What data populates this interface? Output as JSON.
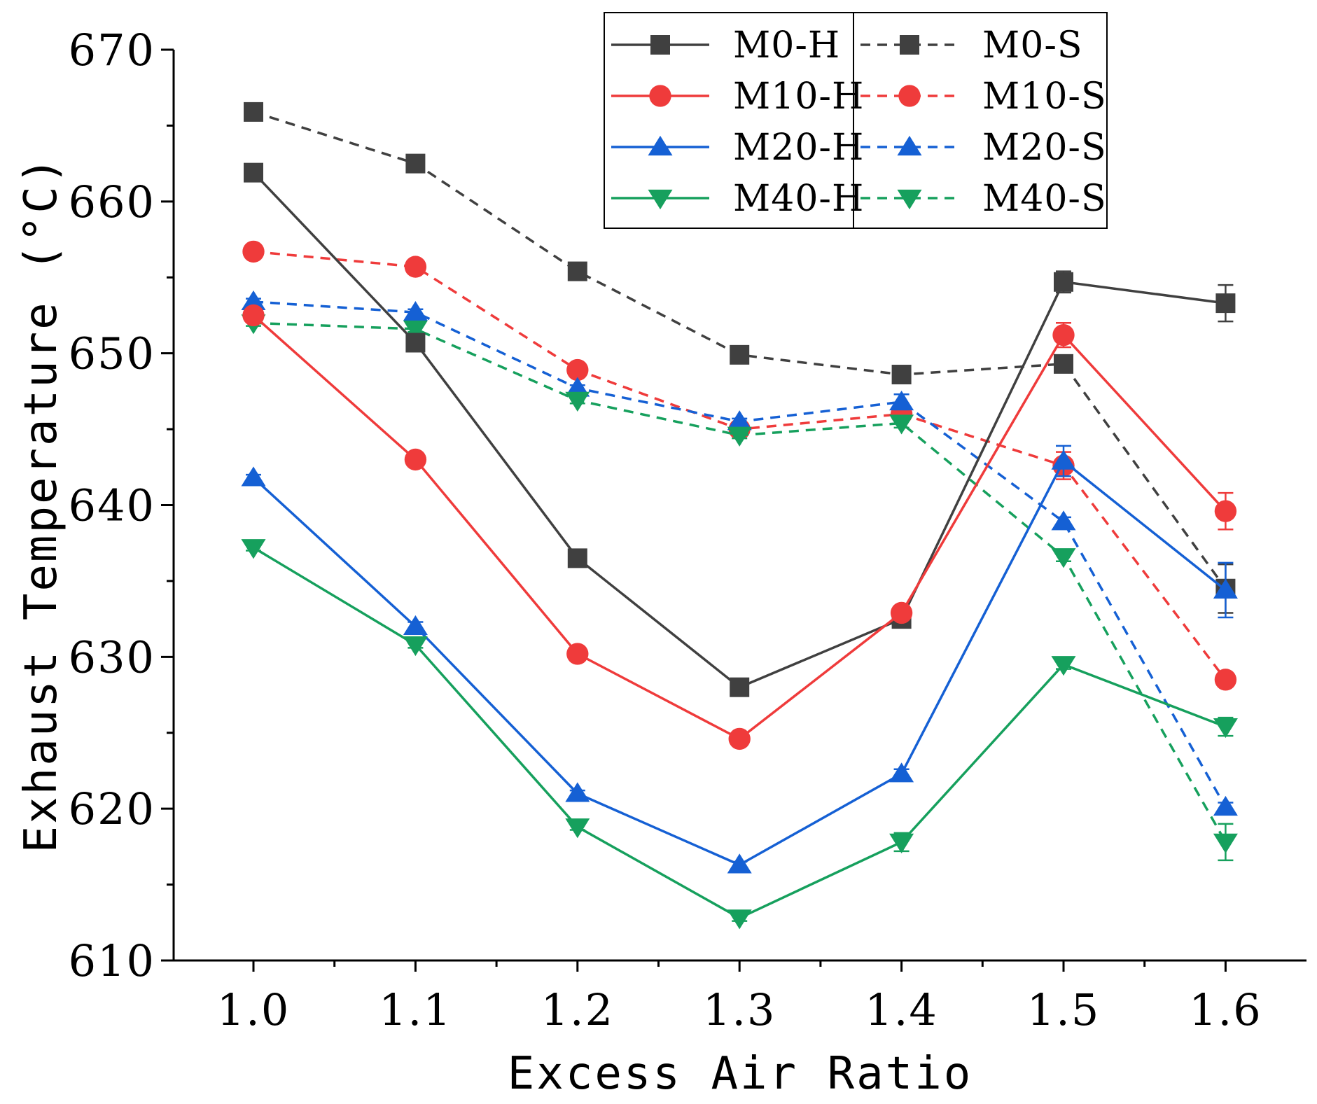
{
  "chart_data": {
    "type": "line",
    "title": "",
    "xlabel": "Excess Air Ratio",
    "ylabel": "Exhaust Temperature (°C)",
    "x": [
      1.0,
      1.1,
      1.2,
      1.3,
      1.4,
      1.5,
      1.6
    ],
    "x_tick_labels": [
      "1.0",
      "1.1",
      "1.2",
      "1.3",
      "1.4",
      "1.5",
      "1.6"
    ],
    "xlim": [
      0.95,
      1.65
    ],
    "ylim": [
      610,
      670
    ],
    "y_ticks": [
      610,
      620,
      630,
      640,
      650,
      660,
      670
    ],
    "y_minor_ticks": [
      615,
      625,
      635,
      645,
      655,
      665
    ],
    "y_tick_labels": [
      "610",
      "620",
      "630",
      "640",
      "650",
      "660",
      "670"
    ],
    "legend_position": "top-right",
    "series": [
      {
        "name": "M0-H",
        "color": "#404040",
        "dash": "solid",
        "marker": "square",
        "values": [
          661.9,
          650.7,
          636.5,
          628.0,
          632.5,
          654.7,
          653.3
        ],
        "errors": [
          0.2,
          0.2,
          0.2,
          0.2,
          0.2,
          0.7,
          1.2
        ]
      },
      {
        "name": "M10-H",
        "color": "#ef3b3b",
        "dash": "solid",
        "marker": "circle",
        "values": [
          652.5,
          643.0,
          630.2,
          624.6,
          632.9,
          651.2,
          639.6
        ],
        "errors": [
          0.2,
          0.2,
          0.2,
          0.2,
          0.2,
          0.8,
          1.2
        ]
      },
      {
        "name": "M20-H",
        "color": "#1560d4",
        "dash": "solid",
        "marker": "triangle-up",
        "values": [
          641.8,
          632.0,
          621.0,
          616.3,
          622.3,
          642.9,
          634.4
        ],
        "errors": [
          0.2,
          0.3,
          0.2,
          0.2,
          0.3,
          1.0,
          1.8
        ]
      },
      {
        "name": "M40-H",
        "color": "#16a05d",
        "dash": "solid",
        "marker": "triangle-down",
        "values": [
          637.2,
          630.8,
          618.8,
          612.8,
          617.8,
          629.5,
          625.4
        ],
        "errors": [
          0.2,
          0.2,
          0.2,
          0.2,
          0.6,
          0.3,
          0.6
        ]
      },
      {
        "name": "M0-S",
        "color": "#404040",
        "dash": "dashed",
        "marker": "square",
        "values": [
          665.9,
          662.5,
          655.4,
          649.9,
          648.6,
          649.3,
          634.5
        ],
        "errors": [
          0.2,
          0.2,
          0.2,
          0.2,
          0.2,
          0.3,
          1.6
        ]
      },
      {
        "name": "M10-S",
        "color": "#ef3b3b",
        "dash": "dashed",
        "marker": "circle",
        "values": [
          656.7,
          655.7,
          648.9,
          645.0,
          646.0,
          642.6,
          628.5
        ],
        "errors": [
          0.2,
          0.2,
          0.2,
          0.2,
          0.2,
          0.9,
          0.3
        ]
      },
      {
        "name": "M20-S",
        "color": "#1560d4",
        "dash": "dashed",
        "marker": "triangle-up",
        "values": [
          653.4,
          652.7,
          647.7,
          645.5,
          646.8,
          638.9,
          620.1
        ],
        "errors": [
          0.2,
          0.2,
          0.2,
          0.2,
          0.5,
          0.3,
          0.3
        ]
      },
      {
        "name": "M40-S",
        "color": "#16a05d",
        "dash": "dashed",
        "marker": "triangle-down",
        "values": [
          652.0,
          651.6,
          646.9,
          644.6,
          645.4,
          636.6,
          617.8
        ],
        "errors": [
          0.2,
          0.2,
          0.2,
          0.2,
          0.3,
          0.3,
          1.2
        ]
      }
    ]
  }
}
